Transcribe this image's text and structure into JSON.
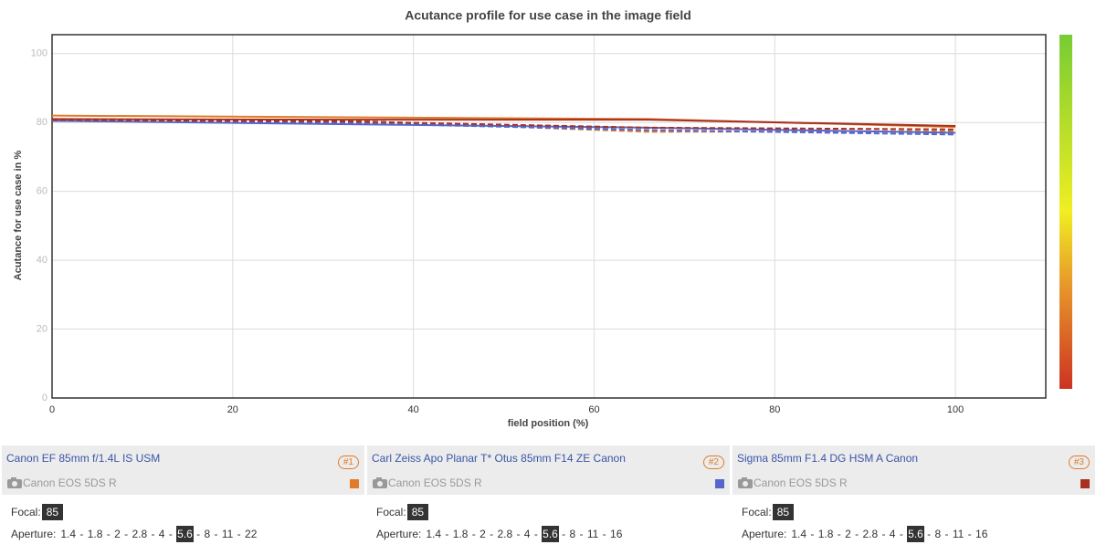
{
  "chart_data": {
    "type": "line",
    "title": "Acutance profile for use case in the image field",
    "x_label": "field position (%)",
    "y_label": "Acutance for use case in %",
    "x": [
      0,
      33,
      66,
      100
    ],
    "series": [
      {
        "color": "#e07b2a",
        "dashed": false,
        "values": [
          82,
          81.5,
          81,
          78.7
        ]
      },
      {
        "color": "#e07b2a",
        "dashed": true,
        "values": [
          81,
          80.5,
          77.3,
          77.5
        ]
      },
      {
        "color": "#5566cc",
        "dashed": false,
        "values": [
          80.5,
          79.5,
          78.5,
          77
        ]
      },
      {
        "color": "#5566cc",
        "dashed": true,
        "values": [
          80.5,
          79.8,
          77.8,
          76.5
        ]
      },
      {
        "color": "#a83020",
        "dashed": false,
        "values": [
          81,
          80.8,
          80.8,
          79
        ]
      },
      {
        "color": "#a83020",
        "dashed": true,
        "values": [
          80.8,
          80.3,
          78.5,
          78
        ]
      }
    ],
    "xlim": [
      0,
      110
    ],
    "xticks": [
      0,
      20,
      40,
      60,
      80,
      100
    ],
    "ylim": [
      0,
      105.5
    ],
    "yticks": [
      0,
      20,
      40,
      60,
      80,
      100
    ],
    "grid": true
  },
  "panels": [
    {
      "lens": "Canon EF 85mm f/1.4L IS USM",
      "badge": "#1",
      "camera": "Canon EOS 5DS R",
      "focal_label": "Focal:",
      "focal": 85,
      "aperture_label": "Aperture:",
      "apertures": [
        "1.4",
        "1.8",
        "2",
        "2.8",
        "4",
        "5.6",
        "8",
        "11",
        "22"
      ],
      "selected": 5
    },
    {
      "lens": "Carl Zeiss Apo Planar T* Otus 85mm F14 ZE Canon",
      "badge": "#2",
      "camera": "Canon EOS 5DS R",
      "focal_label": "Focal:",
      "focal": 85,
      "aperture_label": "Aperture:",
      "apertures": [
        "1.4",
        "1.8",
        "2",
        "2.8",
        "4",
        "5.6",
        "8",
        "11",
        "16"
      ],
      "selected": 5
    },
    {
      "lens": "Sigma 85mm F1.4 DG HSM A Canon",
      "badge": "#3",
      "camera": "Canon EOS 5DS R",
      "focal_label": "Focal:",
      "focal": 85,
      "aperture_label": "Aperture:",
      "apertures": [
        "1.4",
        "1.8",
        "2",
        "2.8",
        "4",
        "5.6",
        "8",
        "11",
        "16"
      ],
      "selected": 5
    }
  ]
}
